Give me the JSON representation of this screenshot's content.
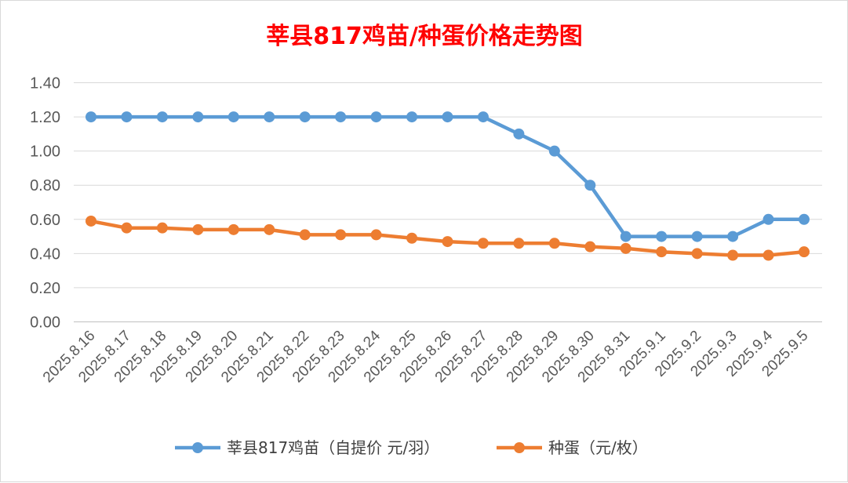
{
  "chart_data": {
    "type": "line",
    "title": "莘县817鸡苗/种蛋价格走势图",
    "xlabel": "",
    "ylabel": "",
    "ylim": [
      0,
      1.4
    ],
    "ytick_labels": [
      "0.00",
      "0.20",
      "0.40",
      "0.60",
      "0.80",
      "1.00",
      "1.20",
      "1.40"
    ],
    "grid": true,
    "legend_position": "bottom",
    "categories": [
      "2025.8.16",
      "2025.8.17",
      "2025.8.18",
      "2025.8.19",
      "2025.8.20",
      "2025.8.21",
      "2025.8.22",
      "2025.8.23",
      "2025.8.24",
      "2025.8.25",
      "2025.8.26",
      "2025.8.27",
      "2025.8.28",
      "2025.8.29",
      "2025.8.30",
      "2025.8.31",
      "2025.9.1",
      "2025.9.2",
      "2025.9.3",
      "2025.9.4",
      "2025.9.5"
    ],
    "series": [
      {
        "name": "莘县817鸡苗（自提价 元/羽）",
        "color": "#5b9bd5",
        "values": [
          1.2,
          1.2,
          1.2,
          1.2,
          1.2,
          1.2,
          1.2,
          1.2,
          1.2,
          1.2,
          1.2,
          1.2,
          1.1,
          1.0,
          0.8,
          0.5,
          0.5,
          0.5,
          0.5,
          0.6,
          0.6
        ]
      },
      {
        "name": "种蛋（元/枚）",
        "color": "#ed7d31",
        "values": [
          0.59,
          0.55,
          0.55,
          0.54,
          0.54,
          0.54,
          0.51,
          0.51,
          0.51,
          0.49,
          0.47,
          0.46,
          0.46,
          0.46,
          0.44,
          0.43,
          0.41,
          0.4,
          0.39,
          0.39,
          0.41
        ]
      }
    ]
  }
}
